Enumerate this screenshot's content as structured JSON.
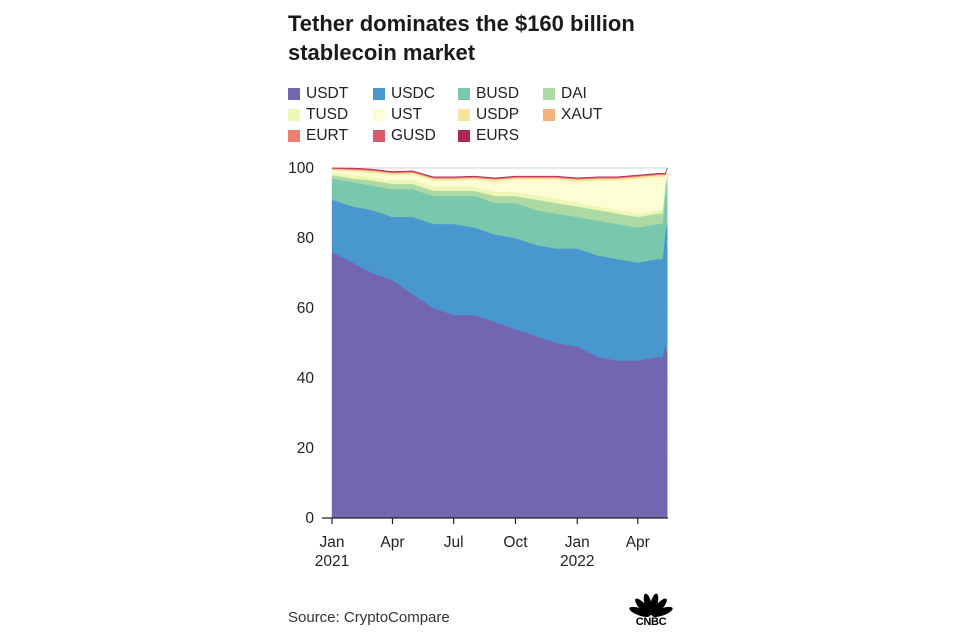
{
  "chart_data": {
    "type": "area",
    "stacked": true,
    "title": "Tether dominates the $160 billion stablecoin market",
    "source": "Source: CryptoCompare",
    "ylim": [
      0,
      100
    ],
    "yticks": [
      0,
      20,
      40,
      60,
      80,
      100
    ],
    "x": [
      "2021-01-01",
      "2021-02-01",
      "2021-03-01",
      "2021-04-01",
      "2021-05-01",
      "2021-06-01",
      "2021-07-01",
      "2021-08-01",
      "2021-09-01",
      "2021-10-01",
      "2021-11-01",
      "2021-12-01",
      "2022-01-01",
      "2022-02-01",
      "2022-03-01",
      "2022-04-01",
      "2022-05-01",
      "2022-05-08",
      "2022-05-12",
      "2022-05-15"
    ],
    "xlim": [
      "2021-01-01",
      "2022-05-16"
    ],
    "xticks": [
      {
        "x": "2021-01-01",
        "line1": "Jan",
        "line2": "2021"
      },
      {
        "x": "2021-04-01",
        "line1": "Apr",
        "line2": ""
      },
      {
        "x": "2021-07-01",
        "line1": "Jul",
        "line2": ""
      },
      {
        "x": "2021-10-01",
        "line1": "Oct",
        "line2": ""
      },
      {
        "x": "2022-01-01",
        "line1": "Jan",
        "line2": "2022"
      },
      {
        "x": "2022-04-01",
        "line1": "Apr",
        "line2": ""
      }
    ],
    "legend_position": "top",
    "series": [
      {
        "name": "USDT",
        "color": "#7366b0",
        "values": [
          76,
          73,
          70,
          68,
          64,
          60,
          58,
          58,
          56,
          54,
          52,
          50,
          49,
          46,
          45,
          45,
          46,
          46,
          50,
          47
        ]
      },
      {
        "name": "USDC",
        "color": "#4997cf",
        "values": [
          15,
          16,
          18,
          18,
          22,
          24,
          26,
          25,
          25,
          26,
          26,
          27,
          28,
          29,
          29,
          28,
          28,
          28,
          32,
          37
        ]
      },
      {
        "name": "BUSD",
        "color": "#78c8ad",
        "values": [
          6,
          7,
          7,
          8,
          8,
          8,
          8,
          9,
          9,
          10,
          10,
          10,
          9,
          10,
          10,
          10,
          10,
          10,
          10,
          12
        ]
      },
      {
        "name": "DAI",
        "color": "#add9a4",
        "values": [
          1,
          1,
          1.5,
          1.5,
          1.5,
          1.5,
          1.5,
          1.5,
          2,
          2,
          3,
          3,
          3,
          3,
          3,
          3,
          3,
          3,
          3,
          2
        ]
      },
      {
        "name": "TUSD",
        "color": "#eef7b6",
        "values": [
          0.8,
          1,
          1,
          1,
          1.2,
          1.2,
          1.2,
          1.2,
          1.2,
          1.2,
          1.2,
          1.2,
          1.2,
          1,
          1,
          1,
          1,
          1,
          1,
          1
        ]
      },
      {
        "name": "UST",
        "color": "#fdfdd3",
        "values": [
          0.5,
          1,
          1.2,
          1.5,
          1.5,
          1.8,
          1.8,
          2,
          3,
          3.5,
          4.5,
          5.5,
          6,
          7.5,
          8.5,
          10,
          9.5,
          9.5,
          1.5,
          0.3
        ]
      },
      {
        "name": "USDP",
        "color": "#f6e59a",
        "values": [
          0.4,
          0.5,
          0.5,
          0.5,
          0.5,
          0.5,
          0.5,
          0.5,
          0.5,
          0.5,
          0.5,
          0.5,
          0.5,
          0.5,
          0.5,
          0.5,
          0.5,
          0.5,
          0.5,
          0.5
        ]
      },
      {
        "name": "XAUT",
        "color": "#f4b27a",
        "values": [
          0.1,
          0.1,
          0.1,
          0.1,
          0.1,
          0.1,
          0.1,
          0.1,
          0.1,
          0.1,
          0.1,
          0.1,
          0.1,
          0.1,
          0.1,
          0.1,
          0.1,
          0.1,
          0.1,
          0.1
        ]
      },
      {
        "name": "EURT",
        "color": "#ea8072",
        "values": [
          0.1,
          0.1,
          0.1,
          0.1,
          0.1,
          0.1,
          0.1,
          0.1,
          0.1,
          0.1,
          0.1,
          0.1,
          0.1,
          0.1,
          0.1,
          0.1,
          0.1,
          0.1,
          0.1,
          0.1
        ]
      },
      {
        "name": "GUSD",
        "color": "#d95a6a",
        "values": [
          0.2,
          0.2,
          0.2,
          0.2,
          0.2,
          0.2,
          0.2,
          0.2,
          0.2,
          0.2,
          0.2,
          0.2,
          0.2,
          0.2,
          0.2,
          0.2,
          0.2,
          0.2,
          0.2,
          0.2
        ]
      },
      {
        "name": "EURS",
        "color": "#a8265a",
        "values": [
          0.1,
          0.1,
          0.1,
          0.1,
          0.1,
          0.1,
          0.1,
          0.1,
          0.1,
          0.1,
          0.1,
          0.1,
          0.1,
          0.1,
          0.1,
          0.1,
          0.1,
          0.1,
          0.1,
          0.1
        ]
      }
    ]
  },
  "branding": {
    "logo_text": "CNBC",
    "peacock_colors": [
      "#000000"
    ]
  }
}
